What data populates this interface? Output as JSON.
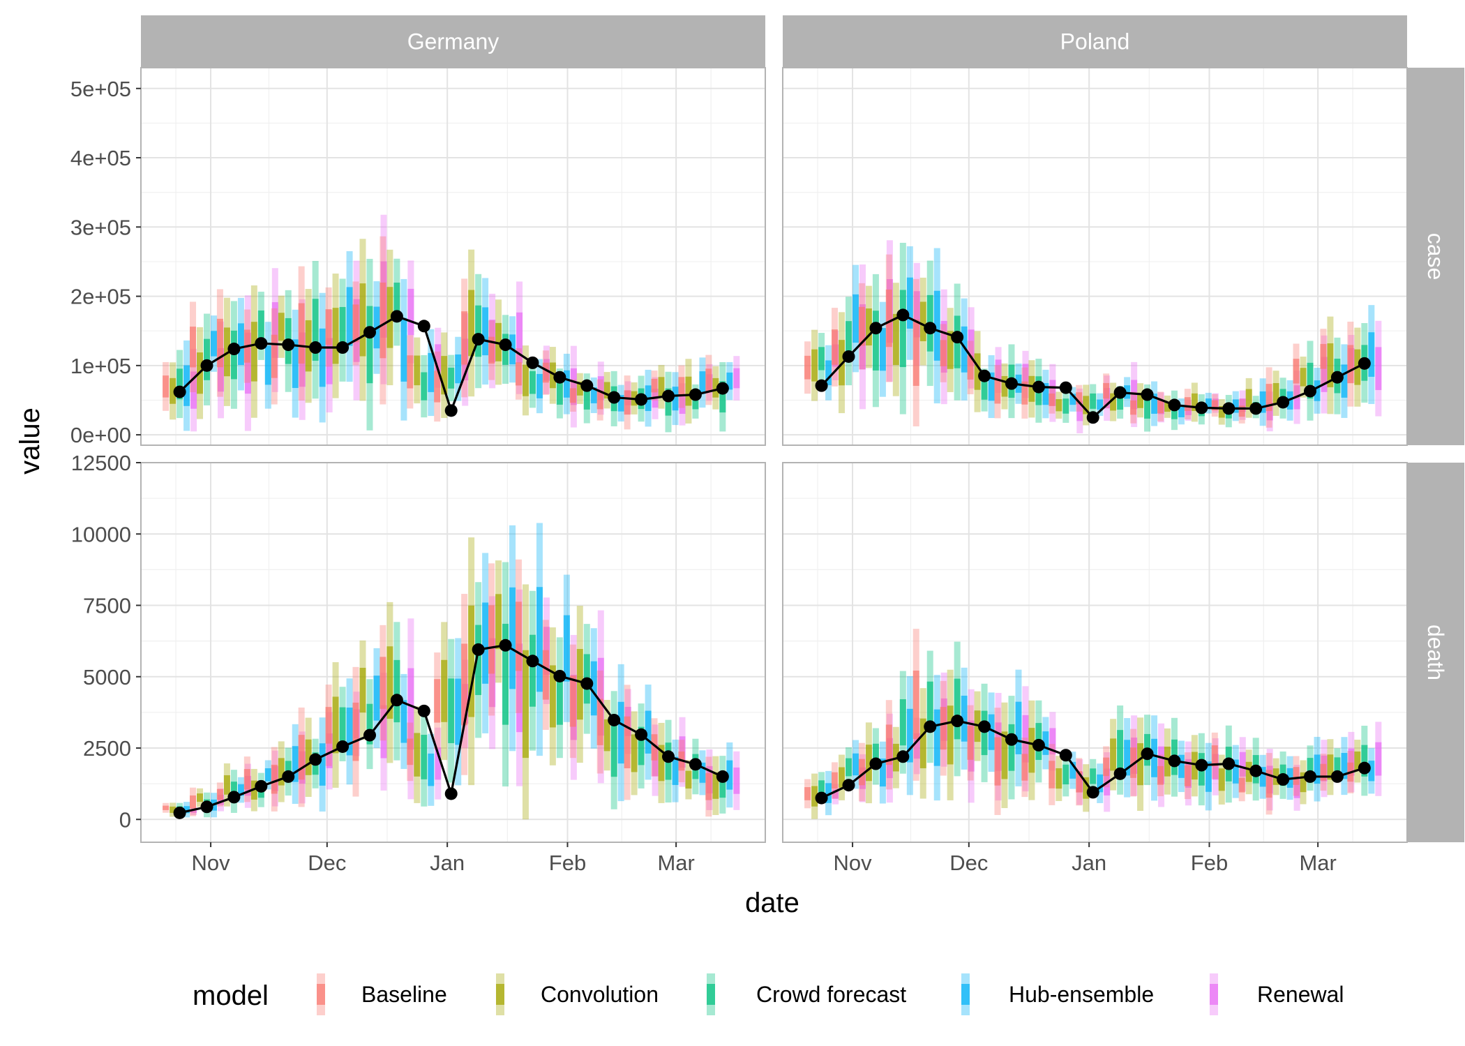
{
  "chart_data": {
    "type": "line",
    "xlabel": "date",
    "ylabel": "value",
    "x_ticks": [
      {
        "date": "2020-11-01",
        "label": "Nov"
      },
      {
        "date": "2020-12-01",
        "label": "Dec"
      },
      {
        "date": "2021-01-01",
        "label": "Jan"
      },
      {
        "date": "2021-02-01",
        "label": "Feb"
      },
      {
        "date": "2021-03-01",
        "label": "Mar"
      }
    ],
    "xlim": [
      "2020-10-14",
      "2021-03-24"
    ],
    "columns": [
      "Germany",
      "Poland"
    ],
    "rows": [
      {
        "name": "case",
        "ylim": [
          -15000,
          530000
        ],
        "y_ticks": [
          0,
          100000,
          200000,
          300000,
          400000,
          500000
        ],
        "y_tick_labels": [
          "0e+00",
          "1e+05",
          "2e+05",
          "3e+05",
          "4e+05",
          "5e+05"
        ]
      },
      {
        "name": "death",
        "ylim": [
          -800,
          12500
        ],
        "y_ticks": [
          0,
          2500,
          5000,
          7500,
          10000,
          12500
        ],
        "y_tick_labels": [
          "0",
          "2500",
          "5000",
          "7500",
          "10000",
          "12500"
        ]
      }
    ],
    "dates": [
      "2020-10-24",
      "2020-10-31",
      "2020-11-07",
      "2020-11-14",
      "2020-11-21",
      "2020-11-28",
      "2020-12-05",
      "2020-12-12",
      "2020-12-19",
      "2020-12-26",
      "2021-01-02",
      "2021-01-09",
      "2021-01-16",
      "2021-01-23",
      "2021-01-30",
      "2021-02-06",
      "2021-02-13",
      "2021-02-20",
      "2021-02-27",
      "2021-03-06",
      "2021-03-13"
    ],
    "observed": {
      "Germany": {
        "case": [
          62000,
          100000,
          124000,
          132000,
          130000,
          126000,
          126000,
          148000,
          171000,
          157000,
          35000,
          138000,
          130000,
          104000,
          83000,
          71000,
          54000,
          51000,
          56000,
          58000,
          67000
        ],
        "death": [
          230,
          440,
          780,
          1160,
          1500,
          2100,
          2550,
          2950,
          4180,
          3800,
          900,
          5950,
          6100,
          5550,
          5020,
          4760,
          3480,
          2970,
          2200,
          1930,
          1500
        ]
      },
      "Poland": {
        "case": [
          71000,
          113000,
          154000,
          173000,
          154000,
          141000,
          85000,
          74000,
          69000,
          68000,
          25000,
          61000,
          58000,
          43000,
          39000,
          38000,
          38000,
          47000,
          63000,
          83000,
          103000
        ],
        "death": [
          750,
          1200,
          1950,
          2200,
          3250,
          3450,
          3250,
          2800,
          2600,
          2250,
          950,
          1600,
          2300,
          2050,
          1900,
          1950,
          1700,
          1400,
          1500,
          1500,
          1800
        ]
      }
    },
    "models": [
      {
        "name": "Baseline",
        "color": "#F8766D"
      },
      {
        "name": "Convolution",
        "color": "#A3A500"
      },
      {
        "name": "Crowd forecast",
        "color": "#00BF7D"
      },
      {
        "name": "Hub-ensemble",
        "color": "#00B0F6"
      },
      {
        "name": "Renewal",
        "color": "#E76BF3"
      }
    ],
    "legend_position": "bottom",
    "grid": true
  },
  "legend": {
    "title": "model",
    "items": [
      "Baseline",
      "Convolution",
      "Crowd forecast",
      "Hub-ensemble",
      "Renewal"
    ]
  }
}
